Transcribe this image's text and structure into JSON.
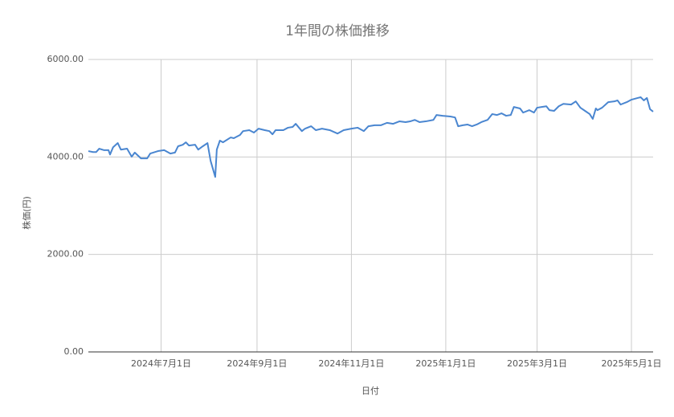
{
  "chart_data": {
    "type": "line",
    "title": "1年間の株価推移",
    "x_label": "日付",
    "y_label": "株価(円)",
    "color": "#4a86d0",
    "grid": true,
    "xlim": [
      "2024-05-15",
      "2025-05-15"
    ],
    "xticks": [
      {
        "value": "2024-07-01",
        "label": "2024年7月1日"
      },
      {
        "value": "2024-09-01",
        "label": "2024年9月1日"
      },
      {
        "value": "2024-11-01",
        "label": "2024年11月1日"
      },
      {
        "value": "2025-01-01",
        "label": "2025年1月1日"
      },
      {
        "value": "2025-03-01",
        "label": "2025年3月1日"
      },
      {
        "value": "2025-05-01",
        "label": "2025年5月1日"
      }
    ],
    "ylim": [
      0,
      6000
    ],
    "yticks": [
      {
        "value": 0,
        "label": "0.00"
      },
      {
        "value": 2000,
        "label": "2000.00"
      },
      {
        "value": 4000,
        "label": "4000.00"
      },
      {
        "value": 6000,
        "label": "6000.00"
      }
    ],
    "x": [
      "2024-05-15",
      "2024-05-18",
      "2024-05-20",
      "2024-05-22",
      "2024-05-25",
      "2024-05-28",
      "2024-05-29",
      "2024-05-31",
      "2024-06-03",
      "2024-06-05",
      "2024-06-09",
      "2024-06-12",
      "2024-06-14",
      "2024-06-18",
      "2024-06-22",
      "2024-06-24",
      "2024-06-29",
      "2024-07-03",
      "2024-07-07",
      "2024-07-10",
      "2024-07-12",
      "2024-07-15",
      "2024-07-17",
      "2024-07-19",
      "2024-07-23",
      "2024-07-25",
      "2024-07-28",
      "2024-07-31",
      "2024-08-02",
      "2024-08-05",
      "2024-08-06",
      "2024-08-08",
      "2024-08-10",
      "2024-08-15",
      "2024-08-17",
      "2024-08-21",
      "2024-08-23",
      "2024-08-27",
      "2024-08-30",
      "2024-09-02",
      "2024-09-06",
      "2024-09-09",
      "2024-09-11",
      "2024-09-13",
      "2024-09-18",
      "2024-09-21",
      "2024-09-24",
      "2024-09-26",
      "2024-09-30",
      "2024-10-02",
      "2024-10-06",
      "2024-10-09",
      "2024-10-13",
      "2024-10-18",
      "2024-10-23",
      "2024-10-27",
      "2024-11-01",
      "2024-11-05",
      "2024-11-09",
      "2024-11-12",
      "2024-11-16",
      "2024-11-20",
      "2024-11-24",
      "2024-11-28",
      "2024-12-02",
      "2024-12-06",
      "2024-12-09",
      "2024-12-12",
      "2024-12-15",
      "2024-12-19",
      "2024-12-24",
      "2024-12-26",
      "2024-12-30",
      "2025-01-04",
      "2025-01-07",
      "2025-01-09",
      "2025-01-12",
      "2025-01-15",
      "2025-01-18",
      "2025-01-21",
      "2025-01-24",
      "2025-01-28",
      "2025-01-31",
      "2025-02-03",
      "2025-02-06",
      "2025-02-09",
      "2025-02-12",
      "2025-02-14",
      "2025-02-18",
      "2025-02-20",
      "2025-02-24",
      "2025-02-27",
      "2025-03-01",
      "2025-03-04",
      "2025-03-07",
      "2025-03-09",
      "2025-03-12",
      "2025-03-15",
      "2025-03-18",
      "2025-03-23",
      "2025-03-26",
      "2025-03-29",
      "2025-04-01",
      "2025-04-04",
      "2025-04-06",
      "2025-04-08",
      "2025-04-09",
      "2025-04-12",
      "2025-04-16",
      "2025-04-20",
      "2025-04-22",
      "2025-04-24",
      "2025-04-28",
      "2025-05-01",
      "2025-05-05",
      "2025-05-07",
      "2025-05-09",
      "2025-05-11",
      "2025-05-13",
      "2025-05-15"
    ],
    "values": [
      4120,
      4100,
      4100,
      4170,
      4140,
      4140,
      4050,
      4200,
      4285,
      4150,
      4170,
      4005,
      4090,
      3970,
      3970,
      4070,
      4120,
      4140,
      4070,
      4090,
      4220,
      4250,
      4300,
      4235,
      4250,
      4150,
      4220,
      4285,
      3920,
      3590,
      4150,
      4335,
      4300,
      4400,
      4385,
      4450,
      4530,
      4550,
      4500,
      4580,
      4550,
      4530,
      4465,
      4550,
      4550,
      4600,
      4615,
      4680,
      4530,
      4580,
      4630,
      4550,
      4580,
      4550,
      4480,
      4550,
      4580,
      4600,
      4530,
      4630,
      4650,
      4650,
      4700,
      4680,
      4730,
      4715,
      4730,
      4760,
      4715,
      4730,
      4760,
      4860,
      4845,
      4830,
      4810,
      4630,
      4650,
      4665,
      4630,
      4665,
      4715,
      4760,
      4880,
      4860,
      4895,
      4845,
      4860,
      5025,
      4995,
      4910,
      4960,
      4910,
      5010,
      5025,
      5040,
      4960,
      4945,
      5040,
      5090,
      5075,
      5140,
      5010,
      4945,
      4880,
      4780,
      4995,
      4960,
      5010,
      5125,
      5140,
      5160,
      5075,
      5125,
      5175,
      5210,
      5225,
      5160,
      5210,
      4980,
      4930
    ]
  }
}
